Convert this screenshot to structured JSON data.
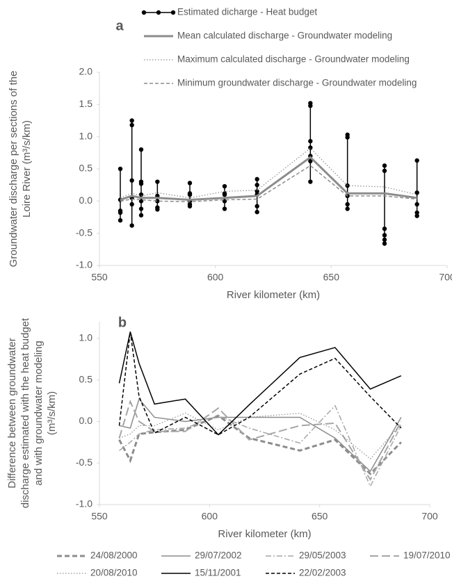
{
  "chart_data": [
    {
      "type": "line",
      "label": "a",
      "x_label": "River kilometer (km)",
      "y_label": [
        "Groundwater discharge per sections of the",
        "Loire River (m³/s/km)"
      ],
      "xlim": [
        550,
        700
      ],
      "xticks": [
        550,
        600,
        650,
        700
      ],
      "ylim": [
        -1,
        2
      ],
      "yticks": [
        {
          "value": -1,
          "label": "-1.0"
        },
        {
          "value": -0.5,
          "label": "-0.5"
        },
        {
          "value": 0,
          "label": "0.0"
        },
        {
          "value": 0.5,
          "label": "0.5"
        },
        {
          "value": 1,
          "label": "1.0"
        },
        {
          "value": 1.5,
          "label": "1.5"
        },
        {
          "value": 2,
          "label": "2.0"
        }
      ],
      "grid": false,
      "series": [
        {
          "name": "Estimated dicharge - Heat budget",
          "color": "#000000",
          "style": "solid",
          "markers": true,
          "x": [
            559,
            559,
            559,
            559,
            559,
            null,
            564,
            564,
            564,
            564,
            564,
            564,
            null,
            568,
            568,
            568,
            568,
            568,
            568,
            568,
            null,
            575,
            575,
            575,
            575,
            575,
            null,
            589,
            589,
            589,
            589,
            589,
            589,
            null,
            604,
            604,
            604,
            604,
            604,
            null,
            618,
            618,
            618,
            618,
            618,
            618,
            null,
            641,
            641,
            641,
            641,
            641,
            641,
            641,
            null,
            657,
            657,
            657,
            657,
            657,
            657,
            null,
            673,
            673,
            673,
            673,
            673,
            673,
            null,
            687,
            687,
            687,
            687,
            687,
            687
          ],
          "values": [
            0.5,
            0.02,
            -0.15,
            -0.18,
            -0.3,
            null,
            1.25,
            1.18,
            0.32,
            0.05,
            -0.05,
            -0.38,
            null,
            0.8,
            0.3,
            0.27,
            0.1,
            0,
            -0.12,
            -0.22,
            null,
            0.3,
            0.08,
            0,
            -0.1,
            -0.13,
            null,
            0.28,
            0.12,
            0.1,
            0,
            -0.05,
            -0.08,
            null,
            0.23,
            0.12,
            0.1,
            0,
            -0.12,
            null,
            0.34,
            0.25,
            0.15,
            0.1,
            -0.08,
            -0.17,
            null,
            1.52,
            1.48,
            0.93,
            0.83,
            0.7,
            0.62,
            0.3,
            null,
            1.03,
            0.99,
            0.24,
            0.08,
            -0.05,
            -0.12,
            null,
            0.55,
            0.47,
            -0.43,
            -0.53,
            -0.6,
            -0.66,
            null,
            0.63,
            0.13,
            0.13,
            -0.05,
            -0.18,
            -0.23
          ]
        },
        {
          "name": "Mean calculated discharge - Groundwater modeling",
          "color": "#8c8c8c",
          "style": "thick-solid",
          "x": [
            559,
            564,
            568,
            575,
            589,
            604,
            618,
            641,
            657,
            673,
            687
          ],
          "values": [
            0.02,
            0.08,
            0.05,
            0.05,
            0.02,
            0.05,
            0.08,
            0.68,
            0.12,
            0.12,
            0.05
          ]
        },
        {
          "name": "Maximum calculated discharge - Groundwater modeling",
          "color": "#8c8c8c",
          "style": "dotted",
          "x": [
            559,
            564,
            568,
            575,
            589,
            604,
            618,
            641,
            657,
            673,
            687
          ],
          "values": [
            0.05,
            0.12,
            0.08,
            0.13,
            0.05,
            0.15,
            0.17,
            0.82,
            0.24,
            0.22,
            0.1
          ]
        },
        {
          "name": "Minimum groundwater discharge - Groundwater modeling",
          "color": "#8c8c8c",
          "style": "dashed",
          "x": [
            559,
            564,
            568,
            575,
            589,
            604,
            618,
            641,
            657,
            673,
            687
          ],
          "values": [
            0,
            0.03,
            0.02,
            0,
            -0.01,
            0.02,
            0.03,
            0.55,
            0.08,
            0.08,
            0.03
          ]
        }
      ]
    },
    {
      "type": "line",
      "label": "b",
      "x_label": "River kilometer (km)",
      "y_label": [
        "Difference between groundwater",
        "discharge estimated with the heat budget",
        "and with groundwater modeling",
        "(m³/s/km)"
      ],
      "xlim": [
        550,
        700
      ],
      "xticks": [
        550,
        600,
        650,
        700
      ],
      "ylim": [
        -1,
        1.2
      ],
      "yticks": [
        {
          "value": -1,
          "label": "-1.0"
        },
        {
          "value": -0.5,
          "label": "-0.5"
        },
        {
          "value": 0,
          "label": "0.0"
        },
        {
          "value": 0.5,
          "label": "0.5"
        },
        {
          "value": 1,
          "label": "1.0"
        }
      ],
      "grid": false,
      "series": [
        {
          "name": "24/08/2000",
          "color": "#8c8c8c",
          "style": "thick-dashed",
          "x": [
            559,
            564,
            568,
            575,
            589,
            604,
            618,
            641,
            657,
            673,
            687
          ],
          "values": [
            -0.22,
            -0.47,
            -0.15,
            -0.13,
            -0.1,
            0.07,
            -0.2,
            -0.35,
            -0.22,
            -0.63,
            -0.25
          ]
        },
        {
          "name": "29/07/2002",
          "color": "#8c8c8c",
          "style": "solid",
          "x": [
            559,
            564,
            568,
            575,
            589,
            604,
            618,
            641,
            657,
            673,
            687
          ],
          "values": [
            -0.05,
            -0.08,
            0.27,
            0.05,
            0,
            0.05,
            0.05,
            0.05,
            -0.2,
            -0.6,
            0.05
          ]
        },
        {
          "name": "29/05/2003",
          "color": "#a6a6a6",
          "style": "dash-dot",
          "x": [
            559,
            564,
            568,
            575,
            589,
            604,
            618,
            641,
            657,
            673,
            687
          ],
          "values": [
            -0.35,
            -0.25,
            -0.15,
            -0.1,
            -0.08,
            0.07,
            -0.08,
            -0.26,
            0.19,
            -0.78,
            -0.05
          ]
        },
        {
          "name": "19/07/2010",
          "color": "#a6a6a6",
          "style": "long-dash",
          "x": [
            559,
            564,
            568,
            575,
            589,
            604,
            618,
            641,
            657,
            673,
            687
          ],
          "values": [
            -0.2,
            0.24,
            0,
            -0.12,
            -0.12,
            0.16,
            -0.22,
            -0.05,
            -0.02,
            -0.7,
            0
          ]
        },
        {
          "name": "20/08/2010",
          "color": "#8c8c8c",
          "style": "dotted",
          "x": [
            559,
            564,
            568,
            575,
            589,
            604,
            618,
            641,
            657,
            673,
            687
          ],
          "values": [
            -0.2,
            -0.15,
            -0.05,
            -0.05,
            0.1,
            -0.1,
            0.05,
            0.1,
            -0.1,
            -0.45,
            -0.03
          ]
        },
        {
          "name": "15/11/2001",
          "color": "#000000",
          "style": "solid",
          "x": [
            559,
            564,
            568,
            575,
            589,
            604,
            618,
            641,
            657,
            673,
            687
          ],
          "values": [
            0.46,
            1.08,
            0.7,
            0.21,
            0.27,
            -0.16,
            0.2,
            0.77,
            0.89,
            0.39,
            0.55
          ]
        },
        {
          "name": "22/02/2003",
          "color": "#000000",
          "style": "dashed",
          "x": [
            559,
            564,
            568,
            575,
            589,
            604,
            618,
            641,
            657,
            673,
            687
          ],
          "values": [
            -0.05,
            1.08,
            0.3,
            -0.14,
            0.05,
            -0.16,
            0.05,
            0.57,
            0.76,
            0.3,
            -0.08
          ]
        }
      ]
    }
  ]
}
